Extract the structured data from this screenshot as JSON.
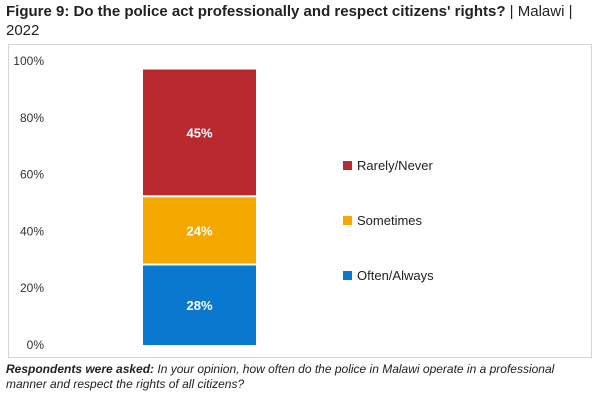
{
  "title": {
    "main": "Figure 9: Do the police act professionally and respect citizens' rights?",
    "suffix": " | Malawi | 2022"
  },
  "footnote": {
    "lead": "Respondents were asked:",
    "text": " In your opinion, how often do the police in Malawi operate in a professional manner and respect the rights of all citizens?"
  },
  "chart_data": {
    "type": "bar",
    "stacked": true,
    "categories": [
      ""
    ],
    "series": [
      {
        "name": "Often/Always",
        "values": [
          28
        ],
        "label": "28%",
        "color": "#0b78d0"
      },
      {
        "name": "Sometimes",
        "values": [
          24
        ],
        "label": "24%",
        "color": "#f5a800"
      },
      {
        "name": "Rarely/Never",
        "values": [
          45
        ],
        "label": "45%",
        "color": "#b82a30"
      }
    ],
    "ylim": [
      0,
      100
    ],
    "yticks": [
      "0%",
      "20%",
      "40%",
      "60%",
      "80%",
      "100%"
    ],
    "legend": "right",
    "grid": false
  }
}
